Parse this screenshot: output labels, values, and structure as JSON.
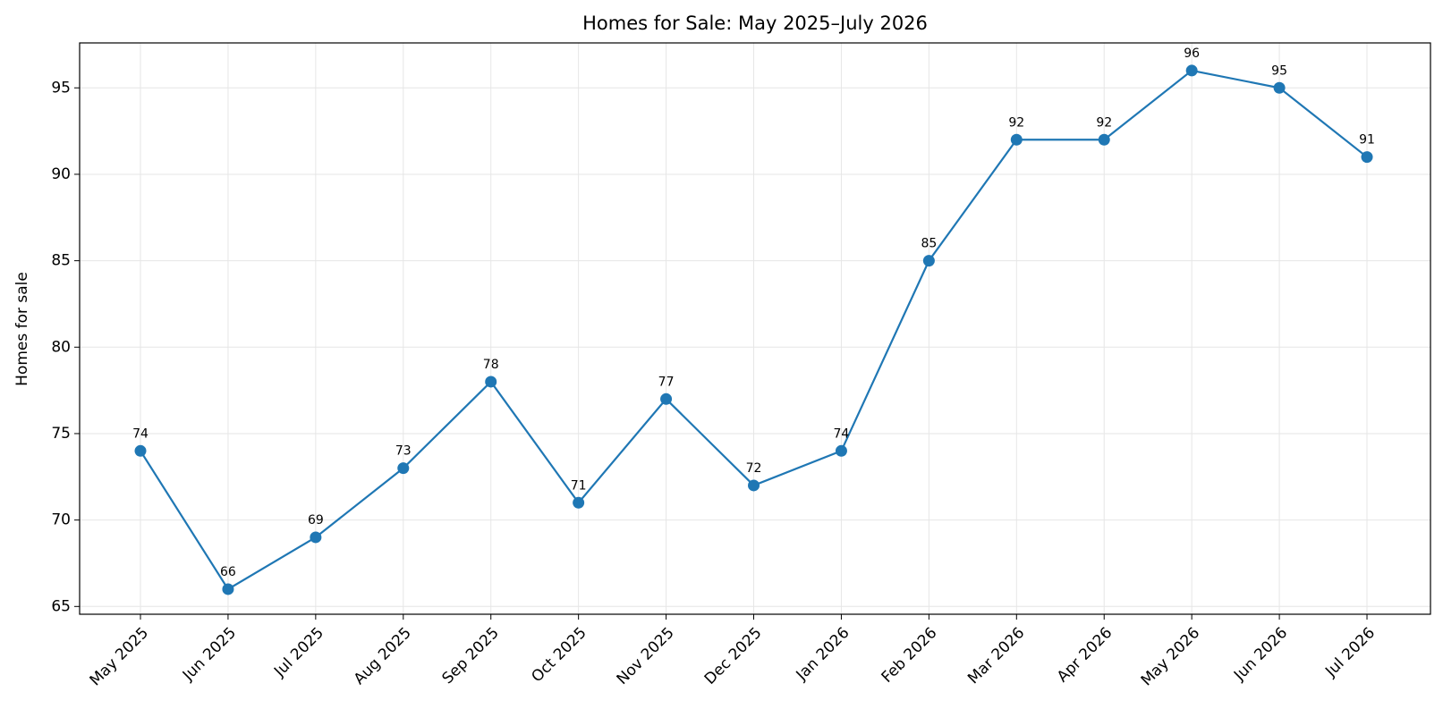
{
  "chart_data": {
    "type": "line",
    "title": "Homes for Sale: May 2025–July 2026",
    "y_label": "Homes for sale",
    "categories": [
      "May 2025",
      "Jun 2025",
      "Jul 2025",
      "Aug 2025",
      "Sep 2025",
      "Oct 2025",
      "Nov 2025",
      "Dec 2025",
      "Jan 2026",
      "Feb 2026",
      "Mar 2026",
      "Apr 2026",
      "May 2026",
      "Jun 2026",
      "Jul 2026"
    ],
    "values": [
      74,
      66,
      69,
      73,
      78,
      71,
      77,
      72,
      74,
      85,
      92,
      92,
      96,
      95,
      91
    ],
    "color": "#1f77b4",
    "ylim": [
      64.55,
      97.6
    ],
    "yticks": [
      65,
      70,
      75,
      80,
      85,
      90,
      95
    ],
    "grid": true,
    "data_labels": true
  }
}
